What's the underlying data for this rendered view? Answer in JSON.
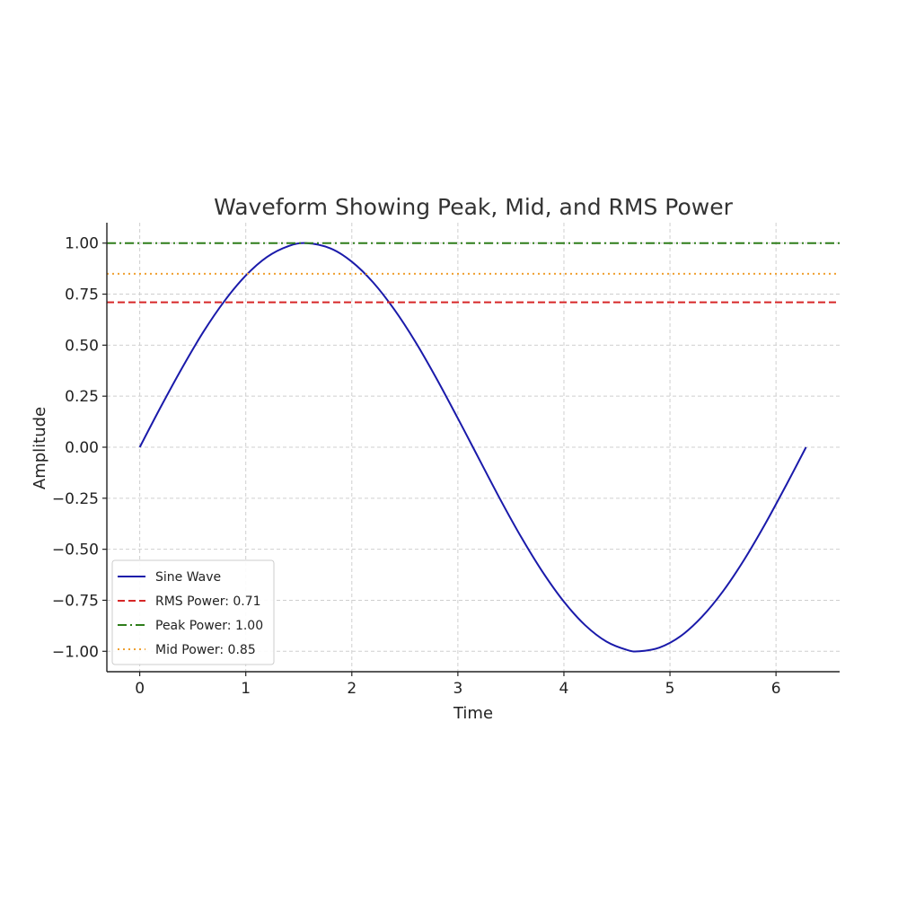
{
  "chart_data": {
    "type": "line",
    "title": "Waveform Showing Peak, Mid, and RMS Power",
    "xlabel": "Time",
    "ylabel": "Amplitude",
    "xlim": [
      -0.31,
      6.6
    ],
    "ylim": [
      -1.1,
      1.1
    ],
    "xticks": [
      0,
      1,
      2,
      3,
      4,
      5,
      6
    ],
    "xtick_labels": [
      "0",
      "1",
      "2",
      "3",
      "4",
      "5",
      "6"
    ],
    "yticks": [
      1.0,
      0.75,
      0.5,
      0.25,
      0.0,
      -0.25,
      -0.5,
      -0.75,
      -1.0
    ],
    "ytick_labels": [
      "1.00",
      "0.75",
      "0.50",
      "0.25",
      "0.00",
      "−0.25",
      "−0.50",
      "−0.75",
      "−1.00"
    ],
    "grid": true,
    "legend_position": "lower-left",
    "series": [
      {
        "name": "Sine Wave",
        "kind": "curve",
        "style": "solid",
        "color": "#1a1aaa",
        "x": [
          0.0,
          0.2,
          0.4,
          0.6,
          0.8,
          1.0,
          1.2,
          1.4,
          1.571,
          1.8,
          2.0,
          2.2,
          2.4,
          2.6,
          2.8,
          3.0,
          3.142,
          3.4,
          3.6,
          3.8,
          4.0,
          4.2,
          4.4,
          4.6,
          4.712,
          4.9,
          5.1,
          5.3,
          5.5,
          5.7,
          5.9,
          6.1,
          6.283
        ],
        "y": [
          0.0,
          0.199,
          0.389,
          0.565,
          0.717,
          0.841,
          0.932,
          0.985,
          1.0,
          0.974,
          0.909,
          0.808,
          0.675,
          0.516,
          0.335,
          0.141,
          0.0,
          -0.256,
          -0.443,
          -0.612,
          -0.757,
          -0.872,
          -0.952,
          -0.994,
          -1.0,
          -0.982,
          -0.926,
          -0.832,
          -0.706,
          -0.551,
          -0.374,
          -0.182,
          0.0
        ]
      },
      {
        "name": "RMS Power: 0.71",
        "kind": "hline",
        "style": "dashed",
        "color": "#d62728",
        "y": 0.71
      },
      {
        "name": "Peak Power: 1.00",
        "kind": "hline",
        "style": "dashdot",
        "color": "#2e7d1a",
        "y": 1.0
      },
      {
        "name": "Mid Power: 0.85",
        "kind": "hline",
        "style": "dotted",
        "color": "#f0a030",
        "y": 0.85
      }
    ]
  }
}
